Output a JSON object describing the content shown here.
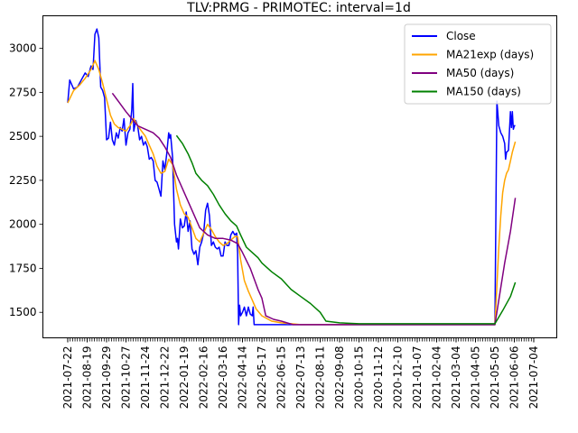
{
  "chart_data": {
    "type": "line",
    "title": "TLV:PRMG - PRIMOTEC: interval=1d",
    "xlabel": "",
    "ylabel": "",
    "ylim": [
      1355,
      3185
    ],
    "yticks": [
      1500,
      1750,
      2000,
      2250,
      2500,
      2750,
      3000
    ],
    "grid": false,
    "legend_position": "top-right",
    "categories": [
      "2021-07-22",
      "2021-08-19",
      "2021-09-29",
      "2021-10-27",
      "2021-11-24",
      "2021-12-22",
      "2022-01-19",
      "2022-02-16",
      "2022-03-16",
      "2022-04-14",
      "2022-05-17",
      "2022-06-15",
      "2022-07-13",
      "2022-08-11",
      "2022-09-08",
      "2020-10-15",
      "2020-11-12",
      "2020-12-10",
      "2021-01-07",
      "2021-02-04",
      "2021-03-04",
      "2021-04-05",
      "2021-05-05",
      "2021-06-06",
      "2021-07-04"
    ],
    "series": [
      {
        "name": "Close",
        "color": "#0000ff",
        "values": [
          [
            0,
            2690
          ],
          [
            0.1,
            2820
          ],
          [
            0.3,
            2770
          ],
          [
            0.5,
            2780
          ],
          [
            0.7,
            2820
          ],
          [
            0.9,
            2860
          ],
          [
            1.05,
            2840
          ],
          [
            1.2,
            2900
          ],
          [
            1.3,
            2880
          ],
          [
            1.4,
            3080
          ],
          [
            1.5,
            3110
          ],
          [
            1.6,
            3060
          ],
          [
            1.7,
            2780
          ],
          [
            1.8,
            2760
          ],
          [
            1.9,
            2720
          ],
          [
            2.0,
            2480
          ],
          [
            2.1,
            2490
          ],
          [
            2.2,
            2580
          ],
          [
            2.3,
            2480
          ],
          [
            2.4,
            2450
          ],
          [
            2.5,
            2520
          ],
          [
            2.6,
            2490
          ],
          [
            2.7,
            2550
          ],
          [
            2.8,
            2530
          ],
          [
            2.9,
            2600
          ],
          [
            3.0,
            2450
          ],
          [
            3.1,
            2520
          ],
          [
            3.2,
            2540
          ],
          [
            3.3,
            2650
          ],
          [
            3.35,
            2800
          ],
          [
            3.4,
            2530
          ],
          [
            3.5,
            2590
          ],
          [
            3.6,
            2560
          ],
          [
            3.7,
            2480
          ],
          [
            3.8,
            2500
          ],
          [
            3.9,
            2450
          ],
          [
            4.0,
            2470
          ],
          [
            4.1,
            2440
          ],
          [
            4.2,
            2370
          ],
          [
            4.3,
            2380
          ],
          [
            4.4,
            2360
          ],
          [
            4.5,
            2250
          ],
          [
            4.6,
            2240
          ],
          [
            4.7,
            2200
          ],
          [
            4.8,
            2160
          ],
          [
            4.9,
            2360
          ],
          [
            5.0,
            2310
          ],
          [
            5.1,
            2400
          ],
          [
            5.2,
            2520
          ],
          [
            5.25,
            2490
          ],
          [
            5.3,
            2510
          ],
          [
            5.4,
            2380
          ],
          [
            5.5,
            2000
          ],
          [
            5.6,
            1900
          ],
          [
            5.65,
            1920
          ],
          [
            5.7,
            1860
          ],
          [
            5.8,
            2030
          ],
          [
            5.9,
            1980
          ],
          [
            6.0,
            1990
          ],
          [
            6.1,
            2070
          ],
          [
            6.2,
            1960
          ],
          [
            6.3,
            2020
          ],
          [
            6.4,
            1860
          ],
          [
            6.5,
            1830
          ],
          [
            6.6,
            1850
          ],
          [
            6.7,
            1770
          ],
          [
            6.8,
            1870
          ],
          [
            6.9,
            1900
          ],
          [
            7.0,
            1950
          ],
          [
            7.1,
            2080
          ],
          [
            7.2,
            2120
          ],
          [
            7.3,
            2050
          ],
          [
            7.4,
            1880
          ],
          [
            7.5,
            1900
          ],
          [
            7.6,
            1870
          ],
          [
            7.7,
            1860
          ],
          [
            7.8,
            1870
          ],
          [
            7.9,
            1820
          ],
          [
            8.0,
            1820
          ],
          [
            8.1,
            1900
          ],
          [
            8.2,
            1880
          ],
          [
            8.3,
            1880
          ],
          [
            8.4,
            1940
          ],
          [
            8.5,
            1960
          ],
          [
            8.6,
            1940
          ],
          [
            8.7,
            1950
          ],
          [
            8.75,
            1840
          ],
          [
            8.8,
            1430
          ],
          [
            8.85,
            1540
          ],
          [
            8.9,
            1480
          ],
          [
            9.0,
            1500
          ],
          [
            9.1,
            1530
          ],
          [
            9.2,
            1480
          ],
          [
            9.3,
            1530
          ],
          [
            9.4,
            1490
          ],
          [
            9.5,
            1480
          ],
          [
            9.55,
            1530
          ],
          [
            9.6,
            1430
          ],
          [
            10.0,
            1430
          ],
          [
            10.5,
            1430
          ],
          [
            11.0,
            1430
          ],
          [
            22.0,
            1430
          ],
          [
            22.1,
            2700
          ],
          [
            22.2,
            2560
          ],
          [
            22.3,
            2520
          ],
          [
            22.4,
            2500
          ],
          [
            22.5,
            2460
          ],
          [
            22.55,
            2370
          ],
          [
            22.6,
            2410
          ],
          [
            22.7,
            2420
          ],
          [
            22.8,
            2640
          ],
          [
            22.85,
            2550
          ],
          [
            22.9,
            2640
          ],
          [
            22.95,
            2540
          ],
          [
            23.0,
            2560
          ],
          [
            23.05,
            2560
          ]
        ]
      },
      {
        "name": "MA21exp (days)",
        "color": "#ffa500",
        "values": [
          [
            0,
            2690
          ],
          [
            0.3,
            2760
          ],
          [
            0.6,
            2790
          ],
          [
            0.9,
            2830
          ],
          [
            1.2,
            2880
          ],
          [
            1.4,
            2930
          ],
          [
            1.6,
            2880
          ],
          [
            1.8,
            2800
          ],
          [
            2.0,
            2710
          ],
          [
            2.2,
            2620
          ],
          [
            2.4,
            2570
          ],
          [
            2.6,
            2550
          ],
          [
            2.8,
            2540
          ],
          [
            3.0,
            2530
          ],
          [
            3.2,
            2560
          ],
          [
            3.4,
            2600
          ],
          [
            3.6,
            2560
          ],
          [
            3.8,
            2530
          ],
          [
            4.0,
            2500
          ],
          [
            4.2,
            2450
          ],
          [
            4.4,
            2400
          ],
          [
            4.6,
            2330
          ],
          [
            4.8,
            2290
          ],
          [
            5.0,
            2300
          ],
          [
            5.2,
            2370
          ],
          [
            5.4,
            2340
          ],
          [
            5.6,
            2200
          ],
          [
            5.8,
            2110
          ],
          [
            6.0,
            2060
          ],
          [
            6.2,
            2040
          ],
          [
            6.4,
            1980
          ],
          [
            6.6,
            1920
          ],
          [
            6.8,
            1900
          ],
          [
            7.0,
            1950
          ],
          [
            7.2,
            2000
          ],
          [
            7.4,
            1970
          ],
          [
            7.6,
            1930
          ],
          [
            7.8,
            1900
          ],
          [
            8.0,
            1880
          ],
          [
            8.2,
            1890
          ],
          [
            8.4,
            1910
          ],
          [
            8.6,
            1930
          ],
          [
            8.75,
            1930
          ],
          [
            8.9,
            1800
          ],
          [
            9.1,
            1680
          ],
          [
            9.3,
            1620
          ],
          [
            9.5,
            1570
          ],
          [
            9.7,
            1520
          ],
          [
            10.0,
            1480
          ],
          [
            10.5,
            1450
          ],
          [
            11.0,
            1440
          ],
          [
            12.0,
            1430
          ],
          [
            22.0,
            1430
          ],
          [
            22.1,
            1650
          ],
          [
            22.2,
            1870
          ],
          [
            22.3,
            2050
          ],
          [
            22.4,
            2180
          ],
          [
            22.5,
            2250
          ],
          [
            22.6,
            2290
          ],
          [
            22.7,
            2310
          ],
          [
            22.8,
            2360
          ],
          [
            22.9,
            2410
          ],
          [
            23.05,
            2470
          ]
        ]
      },
      {
        "name": "MA50 (days)",
        "color": "#800080",
        "values": [
          [
            2.3,
            2745
          ],
          [
            2.6,
            2700
          ],
          [
            3.0,
            2640
          ],
          [
            3.3,
            2600
          ],
          [
            3.6,
            2560
          ],
          [
            4.0,
            2540
          ],
          [
            4.4,
            2520
          ],
          [
            4.7,
            2490
          ],
          [
            5.0,
            2440
          ],
          [
            5.3,
            2380
          ],
          [
            5.6,
            2280
          ],
          [
            6.0,
            2180
          ],
          [
            6.4,
            2080
          ],
          [
            6.8,
            1980
          ],
          [
            7.2,
            1940
          ],
          [
            7.6,
            1920
          ],
          [
            8.0,
            1920
          ],
          [
            8.4,
            1910
          ],
          [
            8.75,
            1890
          ],
          [
            9.0,
            1840
          ],
          [
            9.4,
            1750
          ],
          [
            9.8,
            1630
          ],
          [
            10.0,
            1580
          ],
          [
            10.2,
            1480
          ],
          [
            10.6,
            1460
          ],
          [
            11.0,
            1450
          ],
          [
            11.6,
            1430
          ],
          [
            22.0,
            1430
          ],
          [
            22.5,
            1780
          ],
          [
            22.8,
            1960
          ],
          [
            23.05,
            2150
          ]
        ]
      },
      {
        "name": "MA150 (days)",
        "color": "#008000",
        "values": [
          [
            5.6,
            2505
          ],
          [
            5.9,
            2460
          ],
          [
            6.2,
            2400
          ],
          [
            6.4,
            2350
          ],
          [
            6.6,
            2290
          ],
          [
            6.9,
            2250
          ],
          [
            7.2,
            2220
          ],
          [
            7.5,
            2170
          ],
          [
            7.8,
            2110
          ],
          [
            8.1,
            2060
          ],
          [
            8.4,
            2020
          ],
          [
            8.7,
            1990
          ],
          [
            8.9,
            1940
          ],
          [
            9.2,
            1870
          ],
          [
            9.5,
            1840
          ],
          [
            9.8,
            1810
          ],
          [
            10.0,
            1780
          ],
          [
            10.5,
            1730
          ],
          [
            11.0,
            1690
          ],
          [
            11.5,
            1630
          ],
          [
            12.0,
            1590
          ],
          [
            12.5,
            1550
          ],
          [
            13.0,
            1500
          ],
          [
            13.3,
            1450
          ],
          [
            14.0,
            1440
          ],
          [
            15.0,
            1435
          ],
          [
            22.0,
            1435
          ],
          [
            22.4,
            1510
          ],
          [
            22.8,
            1590
          ],
          [
            23.05,
            1670
          ]
        ]
      }
    ]
  }
}
